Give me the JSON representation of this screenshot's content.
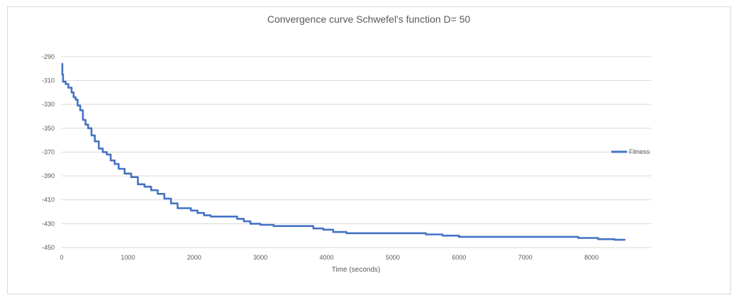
{
  "chart_data": {
    "type": "line",
    "title": "Convergence curve Schwefel's function D= 50",
    "xlabel": "Time (seconds)",
    "ylabel": "",
    "xlim": [
      0,
      8900
    ],
    "ylim": [
      -450,
      -280
    ],
    "x_ticks": [
      0,
      1000,
      2000,
      3000,
      4000,
      5000,
      6000,
      7000,
      8000
    ],
    "y_ticks": [
      -290,
      -310,
      -330,
      -350,
      -370,
      -390,
      -410,
      -430,
      -450
    ],
    "grid": "horizontal",
    "legend_position": "right",
    "series": [
      {
        "name": "Fitness",
        "color": "#4472c4",
        "points": [
          [
            0,
            -296
          ],
          [
            10,
            -305
          ],
          [
            20,
            -311
          ],
          [
            60,
            -313
          ],
          [
            100,
            -316
          ],
          [
            150,
            -320
          ],
          [
            180,
            -324
          ],
          [
            210,
            -326
          ],
          [
            240,
            -331
          ],
          [
            280,
            -335
          ],
          [
            320,
            -343
          ],
          [
            360,
            -347
          ],
          [
            400,
            -350
          ],
          [
            450,
            -356
          ],
          [
            500,
            -361
          ],
          [
            560,
            -367
          ],
          [
            620,
            -370
          ],
          [
            680,
            -372
          ],
          [
            740,
            -377
          ],
          [
            800,
            -380
          ],
          [
            860,
            -384
          ],
          [
            950,
            -388
          ],
          [
            1050,
            -391
          ],
          [
            1150,
            -397
          ],
          [
            1250,
            -399
          ],
          [
            1350,
            -402
          ],
          [
            1450,
            -405
          ],
          [
            1550,
            -409
          ],
          [
            1650,
            -413
          ],
          [
            1750,
            -417
          ],
          [
            1850,
            -417
          ],
          [
            1950,
            -419
          ],
          [
            2050,
            -421
          ],
          [
            2150,
            -423
          ],
          [
            2250,
            -424
          ],
          [
            2400,
            -424
          ],
          [
            2550,
            -424
          ],
          [
            2650,
            -426
          ],
          [
            2750,
            -428
          ],
          [
            2850,
            -430
          ],
          [
            3000,
            -431
          ],
          [
            3200,
            -432
          ],
          [
            3400,
            -432
          ],
          [
            3650,
            -432
          ],
          [
            3800,
            -434
          ],
          [
            3950,
            -435
          ],
          [
            4100,
            -437
          ],
          [
            4300,
            -438
          ],
          [
            4600,
            -438
          ],
          [
            5000,
            -438
          ],
          [
            5300,
            -438
          ],
          [
            5500,
            -439
          ],
          [
            5750,
            -440
          ],
          [
            6000,
            -441
          ],
          [
            6500,
            -441
          ],
          [
            7000,
            -441
          ],
          [
            7600,
            -441
          ],
          [
            7800,
            -442
          ],
          [
            8100,
            -443
          ],
          [
            8350,
            -443.5
          ],
          [
            8500,
            -444
          ]
        ]
      }
    ]
  }
}
